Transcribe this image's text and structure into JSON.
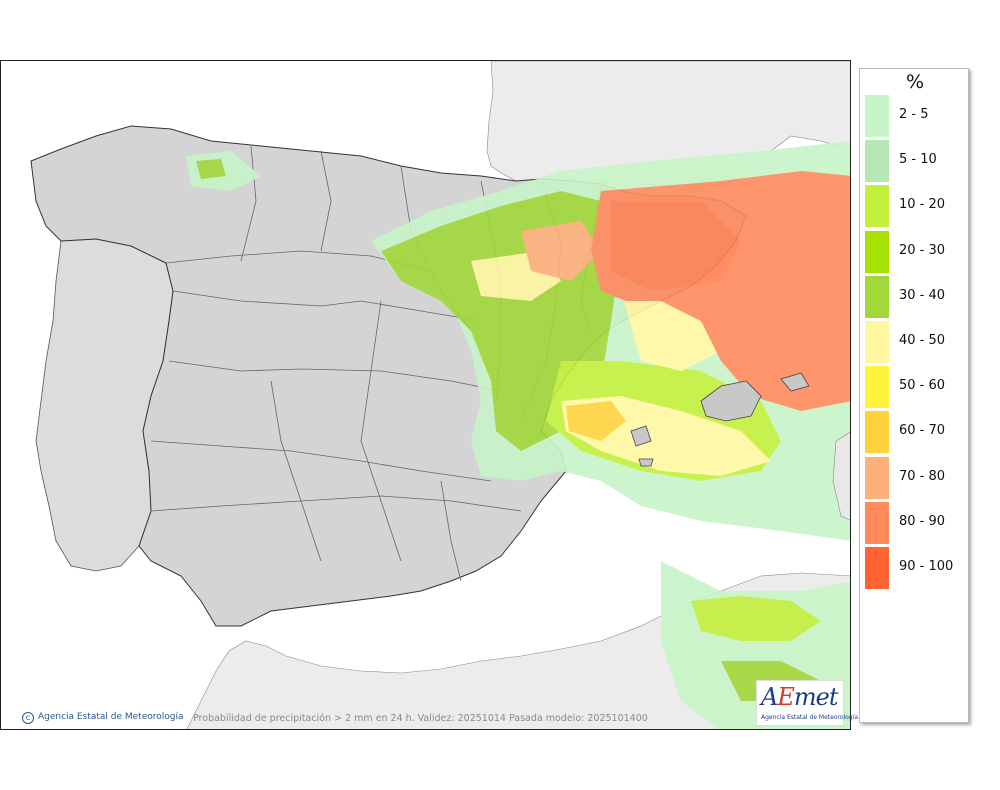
{
  "legend": {
    "title": "%",
    "items": [
      {
        "label": "2 - 5",
        "color": "#c8f5c8"
      },
      {
        "label": "5 - 10",
        "color": "#b6e8b6"
      },
      {
        "label": "10 - 20",
        "color": "#c2f03c"
      },
      {
        "label": "20 - 30",
        "color": "#a8e000"
      },
      {
        "label": "30 - 40",
        "color": "#a2d83a"
      },
      {
        "label": "40 - 50",
        "color": "#fff7a0"
      },
      {
        "label": "50 - 60",
        "color": "#fff23c"
      },
      {
        "label": "60 - 70",
        "color": "#ffd23c"
      },
      {
        "label": "70 - 80",
        "color": "#ffb07a"
      },
      {
        "label": "80 - 90",
        "color": "#ff8a5e"
      },
      {
        "label": "90 - 100",
        "color": "#ff6432"
      }
    ]
  },
  "footer": {
    "agency": "Agencia Estatal de Meteorología",
    "caption": "Probabilidad de precipitación > 2 mm en 24 h. Validez: 20251014 Pasada modelo: 2025101400"
  },
  "logo": {
    "mark_a": "A",
    "mark_e": "E",
    "mark_rest": "met",
    "subtitle": "Agencia Estatal de Meteorología"
  },
  "map": {
    "land_color": "#d6d6d6",
    "foreign_land_color": "#ececec",
    "sea_color": "#ffffff"
  }
}
